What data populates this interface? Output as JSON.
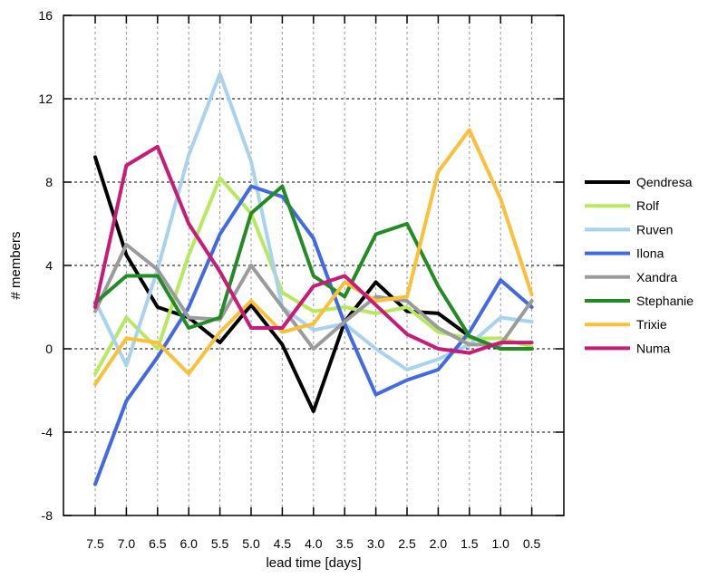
{
  "chart_data": {
    "type": "line",
    "title": "",
    "xlabel": "lead time [days]",
    "ylabel": "# members",
    "x": [
      "7.5",
      "7.0",
      "6.5",
      "6.0",
      "5.5",
      "5.0",
      "4.5",
      "4.0",
      "3.5",
      "3.0",
      "2.5",
      "2.0",
      "1.5",
      "1.0",
      "0.5"
    ],
    "ylim": [
      -8,
      16
    ],
    "yticks": [
      -8,
      -4,
      0,
      4,
      8,
      12,
      16
    ],
    "grid": true,
    "legend": "right",
    "series": [
      {
        "name": "Qendresa",
        "color": "#000000",
        "values": [
          9.2,
          4.5,
          2.0,
          1.5,
          0.3,
          2.1,
          0.2,
          -3.0,
          1.3,
          3.2,
          1.8,
          1.7,
          0.6,
          0.0,
          0.0
        ]
      },
      {
        "name": "Rolf",
        "color": "#b7e960",
        "values": [
          -1.2,
          1.5,
          0.0,
          4.5,
          8.2,
          6.5,
          2.7,
          1.8,
          2.0,
          1.7,
          2.0,
          0.8,
          0.5,
          0.5,
          0.1
        ]
      },
      {
        "name": "Ruven",
        "color": "#a7d3ee",
        "values": [
          2.3,
          -0.8,
          3.8,
          9.3,
          13.2,
          9.0,
          2.0,
          0.9,
          1.2,
          0.0,
          -1.0,
          -0.5,
          0.2,
          1.5,
          1.3
        ]
      },
      {
        "name": "Ilona",
        "color": "#4169e1",
        "values": [
          -6.5,
          -2.5,
          -0.4,
          2.0,
          5.5,
          7.8,
          7.3,
          5.3,
          1.2,
          -2.2,
          -1.5,
          -1.0,
          0.8,
          3.3,
          2.0
        ]
      },
      {
        "name": "Xandra",
        "color": "#9b9b9b",
        "values": [
          1.8,
          5.0,
          3.8,
          1.5,
          1.4,
          4.0,
          2.0,
          0.0,
          1.3,
          2.5,
          2.3,
          1.0,
          0.2,
          0.2,
          2.3
        ]
      },
      {
        "name": "Stephanie",
        "color": "#238b23",
        "values": [
          2.2,
          3.5,
          3.5,
          1.0,
          1.5,
          6.5,
          7.8,
          3.5,
          2.5,
          5.5,
          6.0,
          3.0,
          0.6,
          0.0,
          0.0
        ]
      },
      {
        "name": "Trixie",
        "color": "#fbbf3a",
        "values": [
          -1.7,
          0.5,
          0.3,
          -1.2,
          0.8,
          2.3,
          0.8,
          1.2,
          3.2,
          2.3,
          2.5,
          8.5,
          10.5,
          7.2,
          2.6
        ]
      },
      {
        "name": "Numa",
        "color": "#c71b78",
        "values": [
          2.0,
          8.8,
          9.7,
          6.0,
          3.7,
          1.0,
          1.0,
          3.0,
          3.5,
          2.1,
          0.7,
          0.0,
          -0.2,
          0.3,
          0.3
        ]
      }
    ]
  }
}
